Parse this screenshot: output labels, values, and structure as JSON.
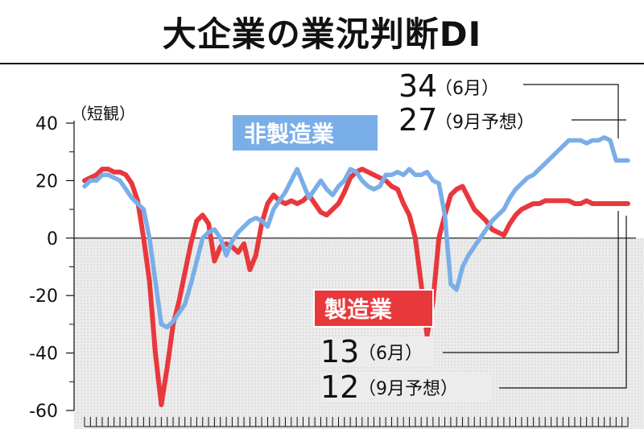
{
  "title": "大企業の業況判断DI",
  "chart_data": {
    "type": "line",
    "unit_label": "（短観）",
    "ylim": [
      -60,
      40
    ],
    "yticks": [
      "40",
      "20",
      "0",
      "-20",
      "-40",
      "-60"
    ],
    "ytick_values": [
      40,
      20,
      0,
      -20,
      -40,
      -60
    ],
    "x_count": 93,
    "series": [
      {
        "name": "非製造業",
        "color": "#7aaee8",
        "values": [
          18,
          20,
          20,
          22,
          22,
          21,
          20,
          17,
          14,
          12,
          10,
          0,
          -15,
          -30,
          -31,
          -29,
          -26,
          -23,
          -16,
          -8,
          0,
          2,
          3,
          0,
          -6,
          -1,
          2,
          4,
          6,
          7,
          6,
          4,
          10,
          13,
          16,
          20,
          24,
          19,
          14,
          17,
          20,
          17,
          15,
          18,
          20,
          24,
          23,
          20,
          18,
          17,
          18,
          22,
          22,
          23,
          22,
          24,
          22,
          22,
          23,
          20,
          19,
          8,
          -16,
          -18,
          -10,
          -6,
          -3,
          0,
          3,
          6,
          8,
          10,
          14,
          17,
          19,
          21,
          22,
          24,
          26,
          28,
          30,
          32,
          34,
          34,
          34,
          33,
          34,
          34,
          35,
          34,
          27,
          27,
          27
        ]
      },
      {
        "name": "製造業",
        "color": "#e8383c",
        "values": [
          20,
          21,
          22,
          24,
          24,
          23,
          23,
          22,
          19,
          13,
          0,
          -15,
          -40,
          -58,
          -45,
          -30,
          -22,
          -12,
          -2,
          6,
          8,
          5,
          -8,
          -3,
          -2,
          -3,
          -5,
          -2,
          -11,
          -6,
          5,
          12,
          15,
          13,
          12,
          13,
          12,
          13,
          15,
          12,
          9,
          8,
          10,
          12,
          16,
          21,
          23,
          24,
          23,
          22,
          21,
          20,
          18,
          17,
          12,
          8,
          0,
          -16,
          -34,
          -22,
          0,
          8,
          15,
          17,
          18,
          14,
          10,
          8,
          6,
          3,
          2,
          1,
          5,
          8,
          10,
          11,
          12,
          12,
          13,
          13,
          13,
          13,
          13,
          12,
          12,
          13,
          12,
          12,
          12,
          12,
          12,
          12,
          12
        ]
      }
    ],
    "callouts": {
      "nonmfg_june": {
        "value": "34",
        "note": "（6月）"
      },
      "nonmfg_sept": {
        "value": "27",
        "note": "（9月予想）"
      },
      "mfg_june": {
        "value": "13",
        "note": "（6月）"
      },
      "mfg_sept": {
        "value": "12",
        "note": "（9月予想）"
      }
    }
  }
}
